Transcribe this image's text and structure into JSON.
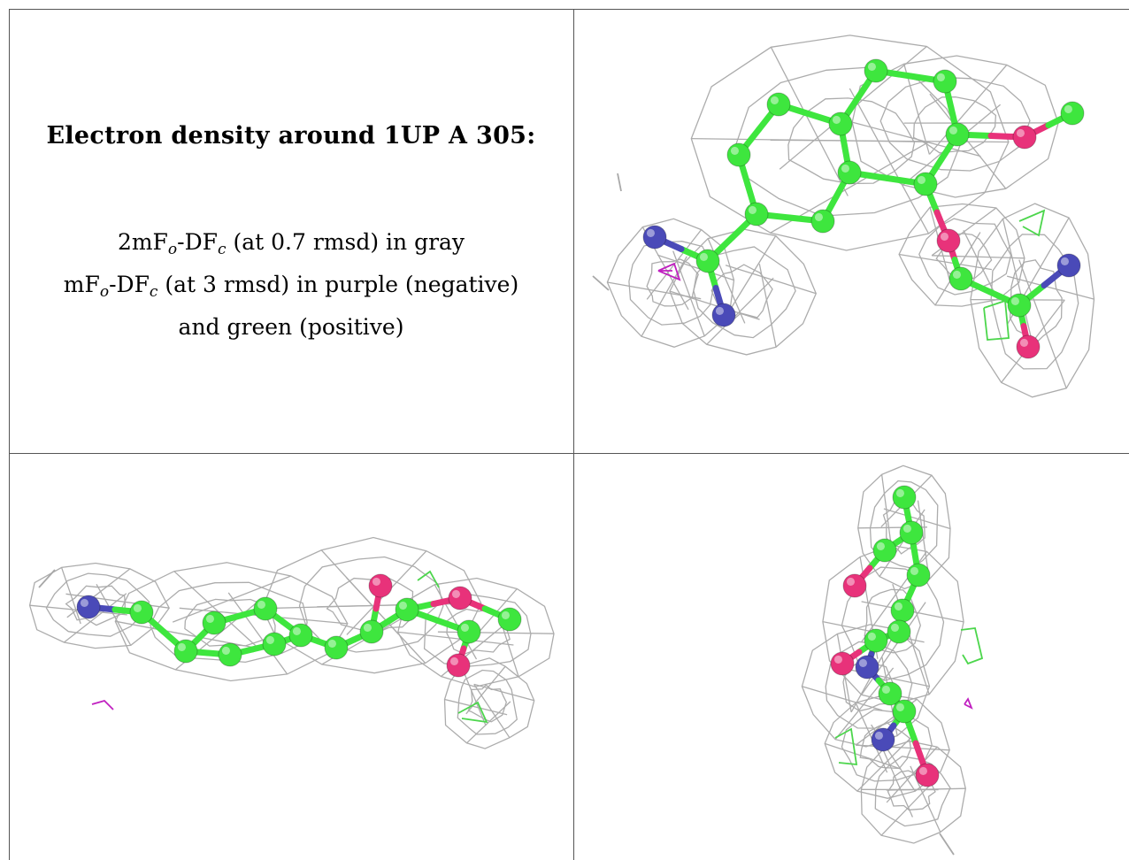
{
  "title": "Electron density around 1UP A 305:",
  "legend": {
    "line1": {
      "prefix": "2mF",
      "sub1": "o",
      "mid": "-DF",
      "sub2": "c",
      "suffix": " (at 0.7 rmsd) in gray"
    },
    "line2": {
      "prefix": "mF",
      "sub1": "o",
      "mid": "-DF",
      "sub2": "c",
      "suffix": " (at 3 rmsd) in purple (negative)"
    },
    "line3": "and green (positive)"
  },
  "colors": {
    "mesh": "#a8a8a8",
    "carbon": "#3ee63e",
    "nitrogen": "#4a4ab8",
    "oxygen": "#e8327a",
    "negative_density": "#c020c0",
    "positive_density": "#4cd64c",
    "frame": "#555555"
  },
  "views": [
    {
      "name": "top-right",
      "icon": "molecule-density-view-face-on"
    },
    {
      "name": "bottom-left",
      "icon": "molecule-density-view-side"
    },
    {
      "name": "bottom-right",
      "icon": "molecule-density-view-edge"
    }
  ]
}
